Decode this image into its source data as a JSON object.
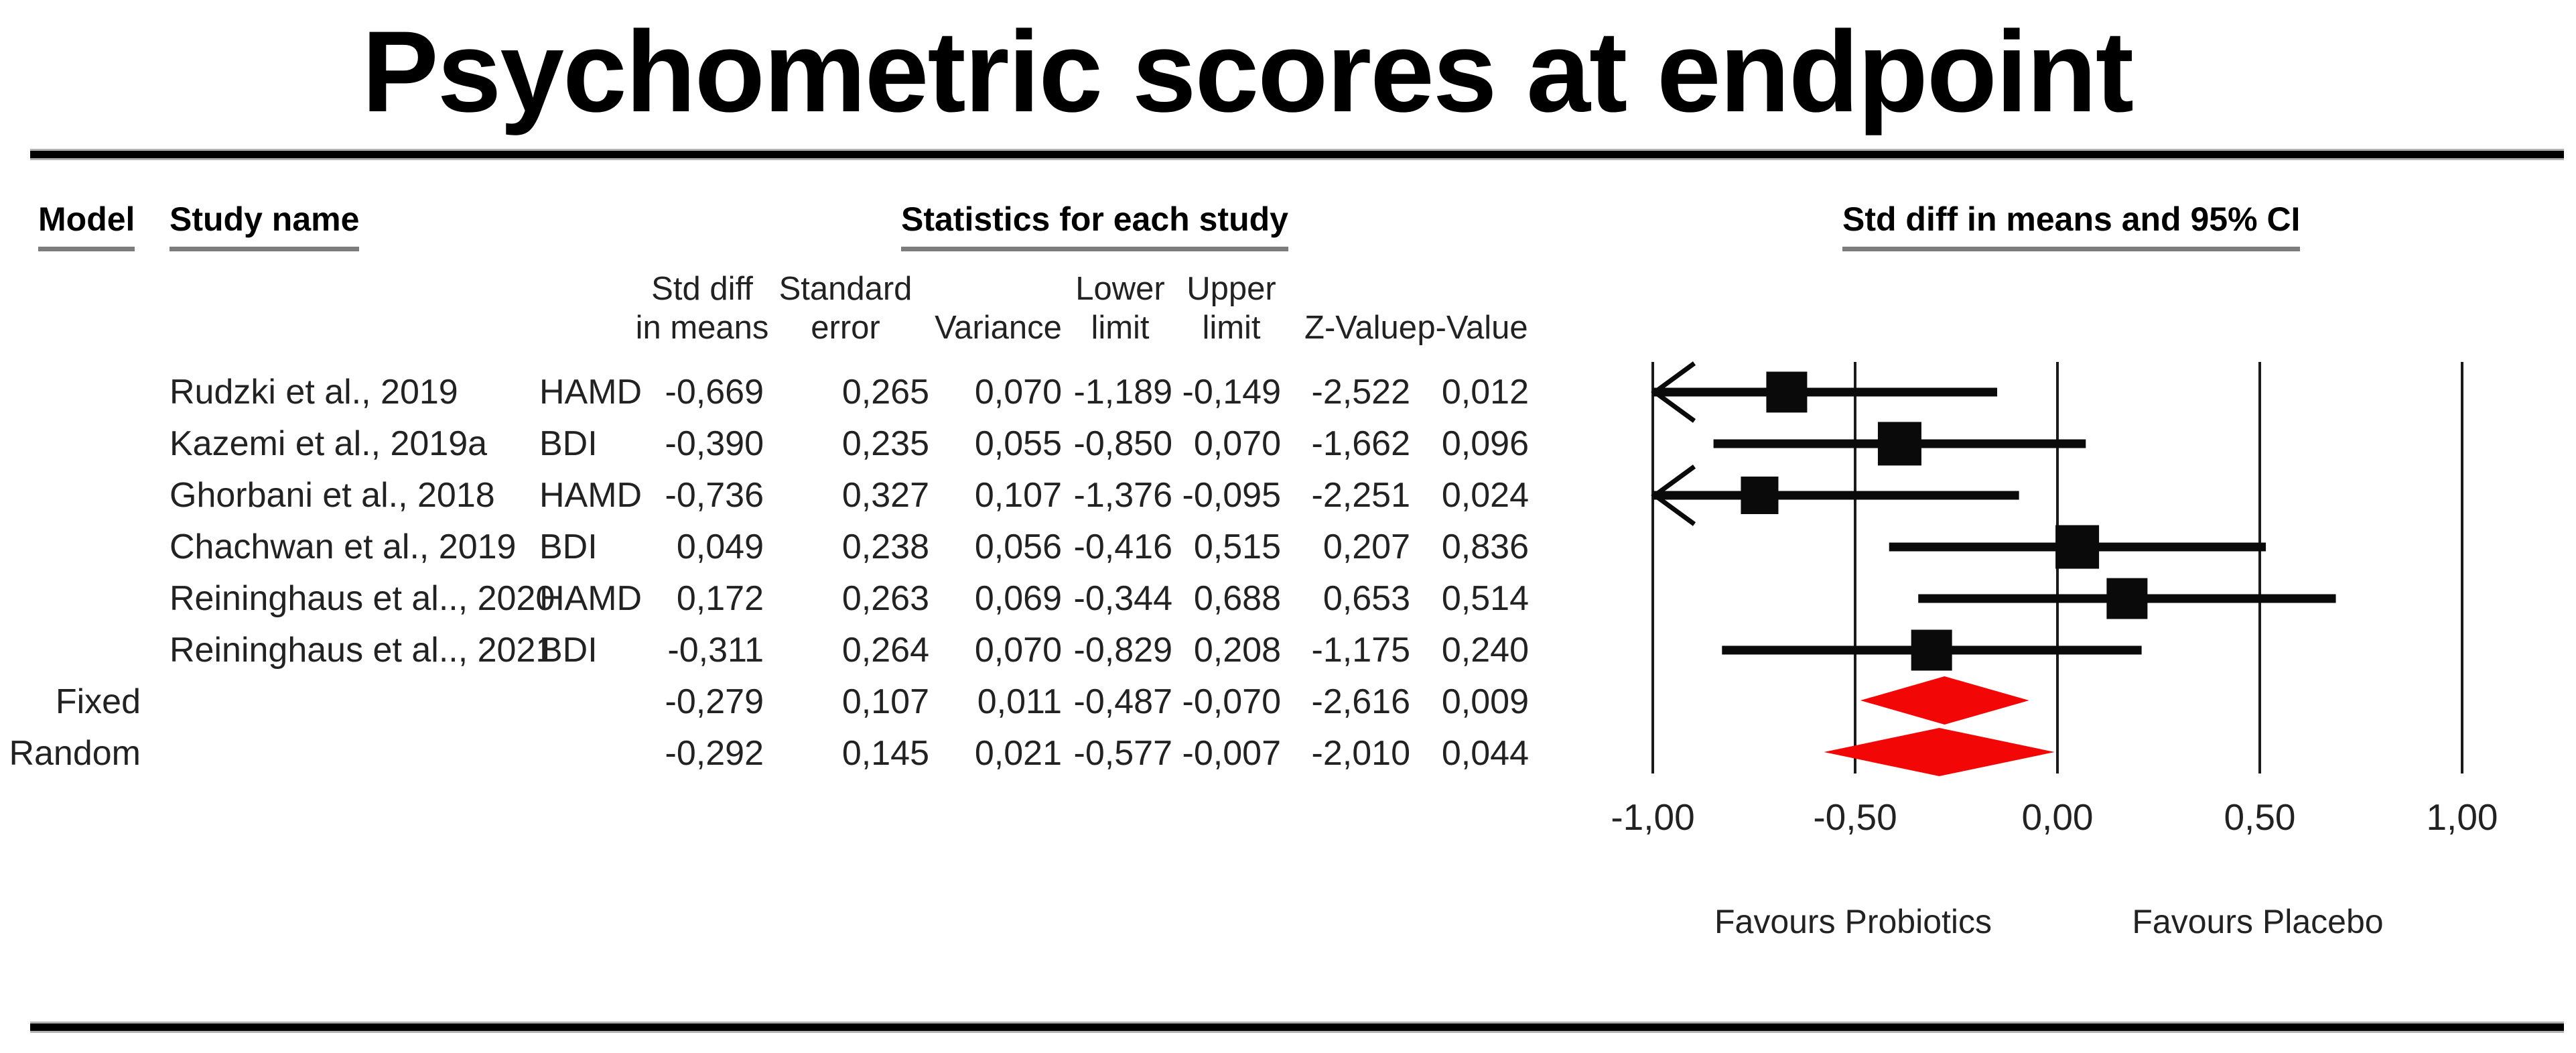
{
  "title": "Psychometric scores at endpoint",
  "table": {
    "group_headers": {
      "model": "Model",
      "study": "Study name",
      "stats": "Statistics for each study",
      "plot": "Std diff in means and 95% CI"
    },
    "stat_col_headers": [
      [
        "Std diff",
        "in means"
      ],
      [
        "Standard",
        "error"
      ],
      [
        "Variance"
      ],
      [
        "Lower",
        "limit"
      ],
      [
        "Upper",
        "limit"
      ],
      [
        "Z-Value"
      ],
      [
        "p-Value"
      ]
    ],
    "rows": [
      {
        "model": "",
        "study": "Rudzki et al., 2019",
        "scale": "HAMD",
        "stats": [
          "-0,669",
          "0,265",
          "0,070",
          "-1,189",
          "-0,149",
          "-2,522",
          "0,012"
        ]
      },
      {
        "model": "",
        "study": "Kazemi et al., 2019a",
        "scale": "BDI",
        "stats": [
          "-0,390",
          "0,235",
          "0,055",
          "-0,850",
          "0,070",
          "-1,662",
          "0,096"
        ]
      },
      {
        "model": "",
        "study": "Ghorbani et al., 2018",
        "scale": "HAMD",
        "stats": [
          "-0,736",
          "0,327",
          "0,107",
          "-1,376",
          "-0,095",
          "-2,251",
          "0,024"
        ]
      },
      {
        "model": "",
        "study": "Chachwan et al., 2019",
        "scale": "BDI",
        "stats": [
          "0,049",
          "0,238",
          "0,056",
          "-0,416",
          "0,515",
          "0,207",
          "0,836"
        ]
      },
      {
        "model": "",
        "study": "Reininghaus et al.., 2020",
        "scale": "HAMD",
        "stats": [
          "0,172",
          "0,263",
          "0,069",
          "-0,344",
          "0,688",
          "0,653",
          "0,514"
        ]
      },
      {
        "model": "",
        "study": "Reininghaus et al.., 2021",
        "scale": "BDI",
        "stats": [
          "-0,311",
          "0,264",
          "0,070",
          "-0,829",
          "0,208",
          "-1,175",
          "0,240"
        ]
      },
      {
        "model": "Fixed",
        "study": "",
        "scale": "",
        "stats": [
          "-0,279",
          "0,107",
          "0,011",
          "-0,487",
          "-0,070",
          "-2,616",
          "0,009"
        ]
      },
      {
        "model": "Random",
        "study": "",
        "scale": "",
        "stats": [
          "-0,292",
          "0,145",
          "0,021",
          "-0,577",
          "-0,007",
          "-2,010",
          "0,044"
        ]
      }
    ]
  },
  "chart_data": {
    "type": "forest",
    "title": "Psychometric scores at endpoint",
    "effect_label": "Std diff in means and 95% CI",
    "axis": {
      "min": -1.0,
      "max": 1.0,
      "ticks": [
        -1.0,
        -0.5,
        0.0,
        0.5,
        1.0
      ],
      "tick_labels": [
        "-1,00",
        "-0,50",
        "0,00",
        "0,50",
        "1,00"
      ],
      "grid": true
    },
    "studies": [
      {
        "name": "Rudzki et al., 2019",
        "scale": "HAMD",
        "estimate": -0.669,
        "lower": -1.189,
        "upper": -0.149,
        "variance": 0.07,
        "marker": "square"
      },
      {
        "name": "Kazemi et al., 2019a",
        "scale": "BDI",
        "estimate": -0.39,
        "lower": -0.85,
        "upper": 0.07,
        "variance": 0.055,
        "marker": "square"
      },
      {
        "name": "Ghorbani et al., 2018",
        "scale": "HAMD",
        "estimate": -0.736,
        "lower": -1.376,
        "upper": -0.095,
        "variance": 0.107,
        "marker": "square"
      },
      {
        "name": "Chachwan et al., 2019",
        "scale": "BDI",
        "estimate": 0.049,
        "lower": -0.416,
        "upper": 0.515,
        "variance": 0.056,
        "marker": "square"
      },
      {
        "name": "Reininghaus et al.., 2020",
        "scale": "HAMD",
        "estimate": 0.172,
        "lower": -0.344,
        "upper": 0.688,
        "variance": 0.069,
        "marker": "square"
      },
      {
        "name": "Reininghaus et al.., 2021",
        "scale": "BDI",
        "estimate": -0.311,
        "lower": -0.829,
        "upper": 0.208,
        "variance": 0.07,
        "marker": "square"
      }
    ],
    "summaries": [
      {
        "name": "Fixed",
        "estimate": -0.279,
        "lower": -0.487,
        "upper": -0.07,
        "marker": "diamond"
      },
      {
        "name": "Random",
        "estimate": -0.292,
        "lower": -0.577,
        "upper": -0.007,
        "marker": "diamond"
      }
    ],
    "footer_left": "Favours Probiotics",
    "footer_right": "Favours Placebo",
    "colors": {
      "marker": "#0a0a0a",
      "ci_line": "#0a0a0a",
      "gridline": "#1a1a1a",
      "diamond": "#f20606",
      "text": "#222222",
      "underline": "#7d7d7d"
    },
    "legend_position": "none"
  }
}
